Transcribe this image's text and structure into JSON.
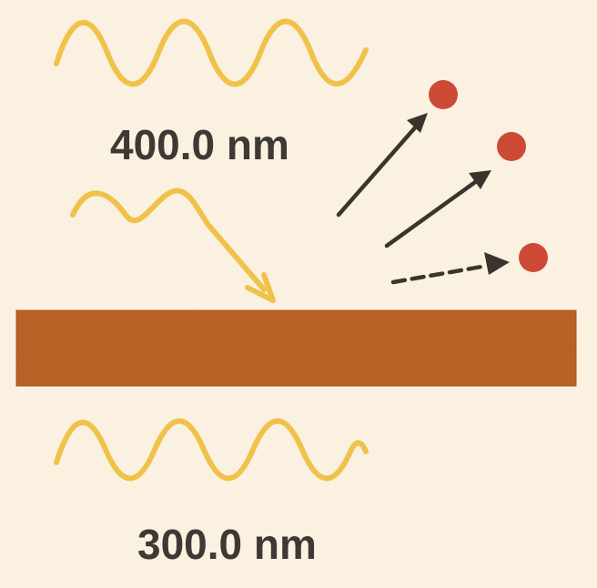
{
  "labels": {
    "top_wavelength": "400.0 nm",
    "bottom_wavelength": "300.0 nm"
  },
  "colors": {
    "background": "#fbf1e1",
    "light_wave": "#f0c24a",
    "metal_plate": "#c0662a",
    "metal_plate_dark": "#a9521f",
    "electron": "#cc4a36",
    "arrow": "#3b342d",
    "label_text": "#3d3934"
  },
  "icons": {
    "incident_wave": "wavy-arrow",
    "electron": "filled-circle",
    "ejection": "arrow"
  }
}
